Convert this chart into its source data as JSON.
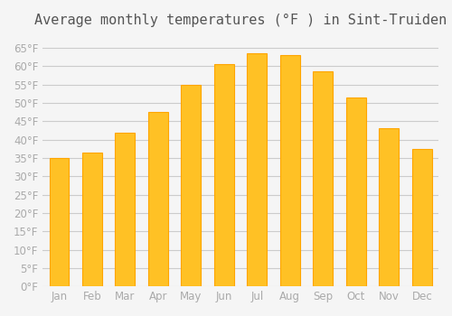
{
  "title": "Average monthly temperatures (°F ) in Sint-Truiden",
  "months": [
    "Jan",
    "Feb",
    "Mar",
    "Apr",
    "May",
    "Jun",
    "Jul",
    "Aug",
    "Sep",
    "Oct",
    "Nov",
    "Dec"
  ],
  "values": [
    35,
    36.5,
    42,
    47.5,
    55,
    60.5,
    63.5,
    63,
    58.5,
    51.5,
    43,
    37.5
  ],
  "bar_color": "#FFC125",
  "bar_edge_color": "#FFA500",
  "background_color": "#F5F5F5",
  "grid_color": "#CCCCCC",
  "ylim": [
    0,
    68
  ],
  "yticks": [
    0,
    5,
    10,
    15,
    20,
    25,
    30,
    35,
    40,
    45,
    50,
    55,
    60,
    65
  ],
  "title_fontsize": 11,
  "tick_fontsize": 8.5,
  "tick_color": "#AAAAAA"
}
